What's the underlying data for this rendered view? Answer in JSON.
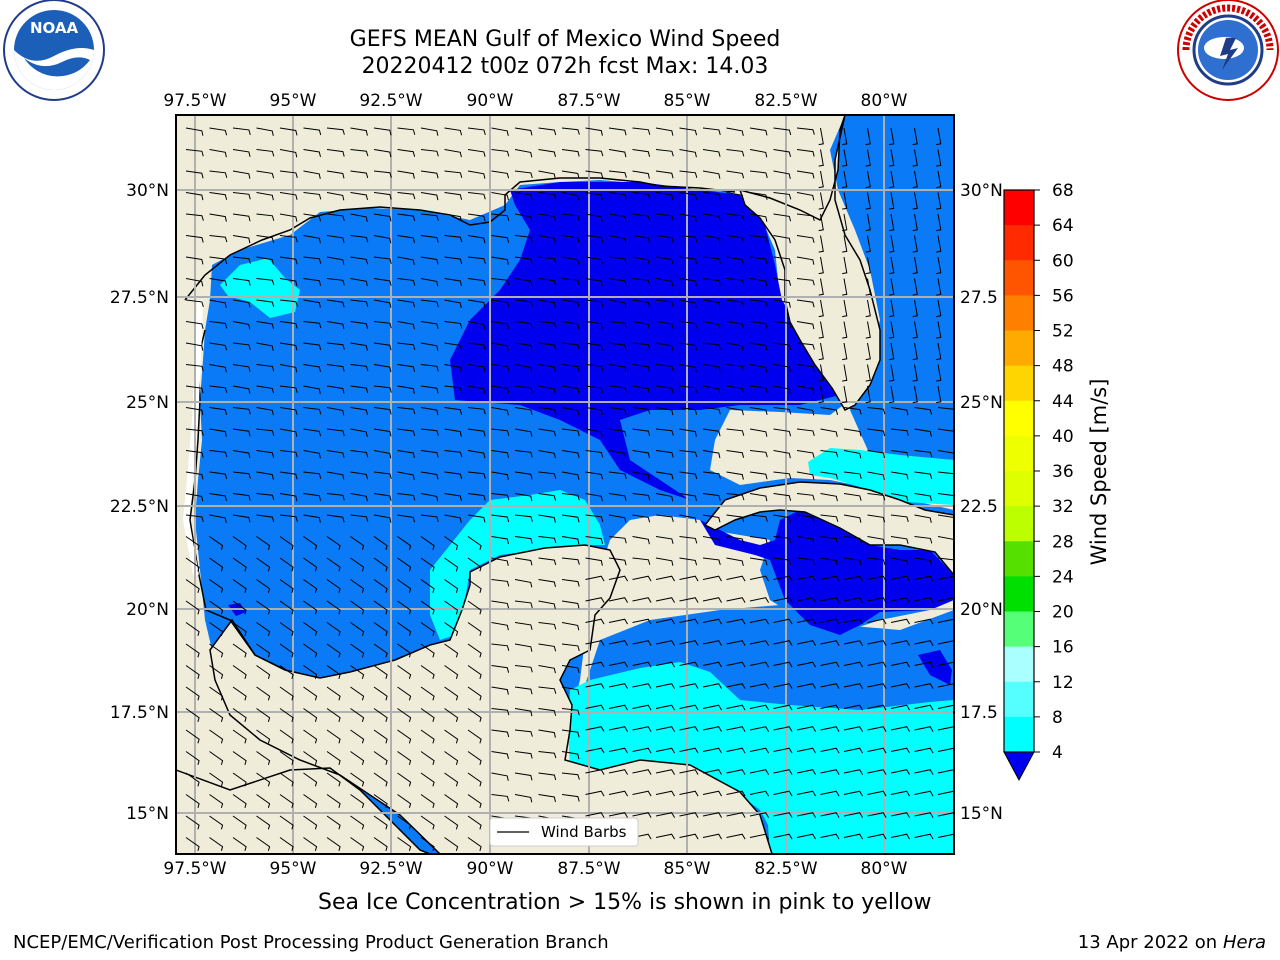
{
  "title": {
    "line1": "GEFS MEAN Gulf of Mexico Wind Speed",
    "line2": "20220412 t00z 072h fcst   Max: 14.03"
  },
  "lon_labels": [
    "97.5°W",
    "95°W",
    "92.5°W",
    "90°W",
    "87.5°W",
    "85°W",
    "82.5°W",
    "80°W"
  ],
  "lat_labels_left": [
    "30°N",
    "27.5°N",
    "25°N",
    "22.5°N",
    "20°N",
    "17.5°N",
    "15°N"
  ],
  "lat_labels_right": [
    "30°N",
    "27.5",
    "25°N",
    "22.5",
    "20°N",
    "17.5",
    "15°N"
  ],
  "colorbar": {
    "label": "Wind Speed [m/s]",
    "ticks": [
      "68",
      "64",
      "60",
      "56",
      "52",
      "48",
      "44",
      "40",
      "36",
      "32",
      "28",
      "24",
      "20",
      "16",
      "12",
      "8",
      "4"
    ],
    "colors": [
      "#ff0000",
      "#ff2a00",
      "#ff5500",
      "#ff8000",
      "#ffaa00",
      "#ffd500",
      "#ffff00",
      "#eeff00",
      "#ddff00",
      "#bbff00",
      "#55e000",
      "#00e000",
      "#55ff77",
      "#aaffff",
      "#55ffff",
      "#00ffff",
      "#0077ff"
    ],
    "underflow_color": "#0000ee"
  },
  "legend": {
    "label": "Wind Barbs"
  },
  "caption": "Sea Ice Concentration > 15% is shown in pink to yellow",
  "footer": {
    "left": "NCEP/EMC/Verification Post Processing Product Generation Branch",
    "right_date": "13 Apr 2022 on ",
    "right_host": "Hera"
  },
  "logos": {
    "noaa": "NOAA",
    "nws": "NATIONAL WEATHER SERVICE"
  }
}
